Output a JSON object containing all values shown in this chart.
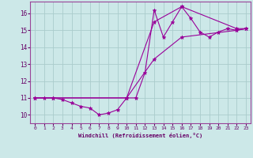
{
  "xlabel": "Windchill (Refroidissement éolien,°C)",
  "bg_color": "#cce8e8",
  "grid_color": "#aacccc",
  "line_color": "#990099",
  "xlim": [
    -0.5,
    23.5
  ],
  "ylim": [
    9.5,
    16.7
  ],
  "xticks": [
    0,
    1,
    2,
    3,
    4,
    5,
    6,
    7,
    8,
    9,
    10,
    11,
    12,
    13,
    14,
    15,
    16,
    17,
    18,
    19,
    20,
    21,
    22,
    23
  ],
  "yticks": [
    10,
    11,
    12,
    13,
    14,
    15,
    16
  ],
  "line1_x": [
    0,
    1,
    2,
    3,
    4,
    5,
    6,
    7,
    8,
    9,
    10,
    11,
    12,
    13,
    14,
    15,
    16,
    17,
    18,
    19,
    20,
    21,
    22,
    23
  ],
  "line1_y": [
    11.0,
    11.0,
    11.0,
    10.9,
    10.7,
    10.5,
    10.4,
    10.0,
    10.1,
    10.3,
    11.0,
    11.0,
    12.5,
    16.2,
    14.6,
    15.5,
    16.4,
    15.7,
    14.9,
    14.6,
    14.9,
    15.1,
    15.0,
    15.1
  ],
  "line2_x": [
    0,
    2,
    10,
    13,
    16,
    22,
    23
  ],
  "line2_y": [
    11.0,
    11.0,
    11.0,
    15.5,
    16.4,
    15.1,
    15.1
  ],
  "line3_x": [
    0,
    2,
    10,
    13,
    16,
    22,
    23
  ],
  "line3_y": [
    11.0,
    11.0,
    11.0,
    13.3,
    14.6,
    15.0,
    15.1
  ]
}
